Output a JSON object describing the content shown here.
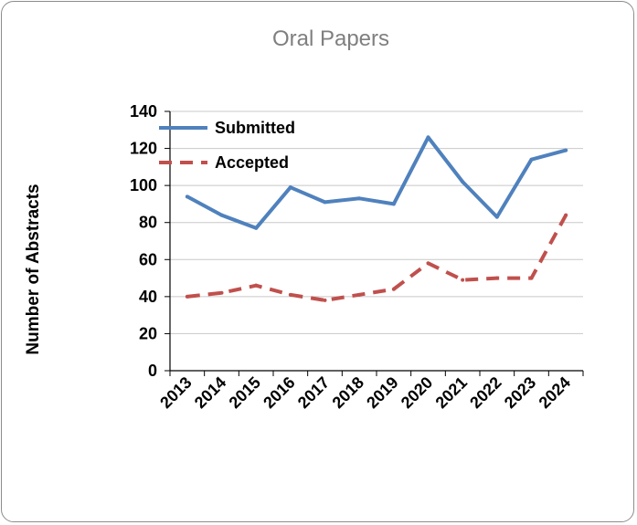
{
  "chart_data": {
    "type": "line",
    "title": "Oral Papers",
    "xlabel": "",
    "ylabel": "Number of Abstracts",
    "categories": [
      "2013",
      "2014",
      "2015",
      "2016",
      "2017",
      "2018",
      "2019",
      "2020",
      "2021",
      "2022",
      "2023",
      "2024"
    ],
    "ylim": [
      0,
      140
    ],
    "yticks": [
      0,
      20,
      40,
      60,
      80,
      100,
      120,
      140
    ],
    "grid": true,
    "legend_position": "top-left",
    "series": [
      {
        "name": "Submitted",
        "color": "#4f81bd",
        "style": "solid",
        "values": [
          94,
          84,
          77,
          99,
          91,
          93,
          90,
          126,
          102,
          83,
          114,
          119
        ]
      },
      {
        "name": "Accepted",
        "color": "#c0504d",
        "style": "dashed",
        "values": [
          40,
          42,
          46,
          41,
          38,
          41,
          44,
          58,
          49,
          50,
          50,
          84
        ]
      }
    ]
  }
}
